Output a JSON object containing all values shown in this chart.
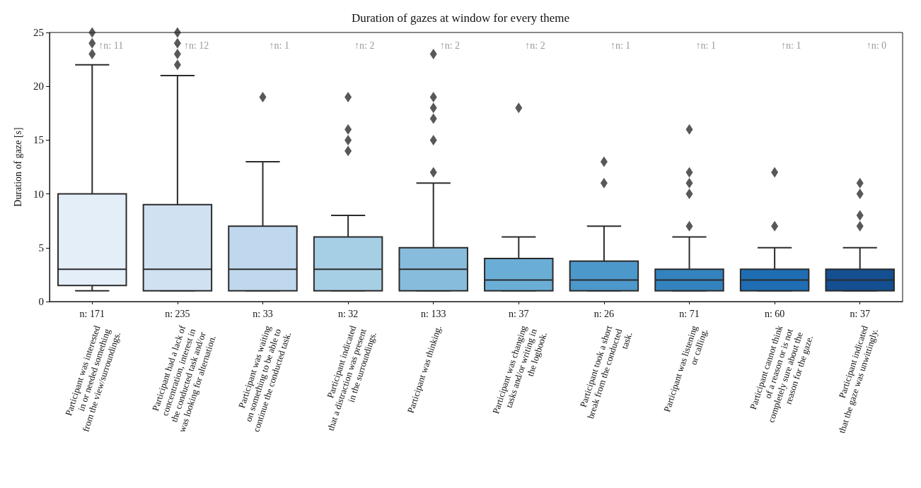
{
  "chart_data": {
    "type": "box",
    "title": "Duration of gazes at window for every theme",
    "ylabel": "Duration of gaze [s]",
    "categories": [
      "Participant was interested\nin or needed something\nfrom the view/surroundings.",
      "Participant had a lack of\nconcentration, interest in\nthe conducted task and/or\nwas looking for alternation.",
      "Participant was waiting\non something to be able to\ncontinue the conducted task.",
      "Participant indicated\nthat a distraction was present\nin the surroundings.",
      "Participant was thinking.",
      "Participant was changing\ntasks and/or writing in\nthe logbook.",
      "Participant took a short\nbreak from the conducted\ntask.",
      "Participant was listening\nor calling.",
      "Participant cannot think\nof a reason or is not\ncompletely sure about the\nreason for the gaze.",
      "Participant indicated\nthat the gaze was unwittingly."
    ],
    "boxes": [
      {
        "low": 1,
        "q1": 1.5,
        "median": 3,
        "q3": 10,
        "high": 22,
        "outliers": [
          23,
          24,
          25
        ]
      },
      {
        "low": 1,
        "q1": 1,
        "median": 3,
        "q3": 9,
        "high": 21,
        "outliers": [
          22,
          23,
          24,
          25
        ]
      },
      {
        "low": 1,
        "q1": 1,
        "median": 3,
        "q3": 7,
        "high": 13,
        "outliers": [
          19
        ]
      },
      {
        "low": 1,
        "q1": 1,
        "median": 3,
        "q3": 6,
        "high": 8,
        "outliers": [
          14,
          15,
          16,
          19
        ]
      },
      {
        "low": 1,
        "q1": 1,
        "median": 3,
        "q3": 5,
        "high": 11,
        "outliers": [
          12,
          15,
          17,
          18,
          19,
          23
        ]
      },
      {
        "low": 1,
        "q1": 1,
        "median": 2,
        "q3": 4,
        "high": 6,
        "outliers": [
          18
        ]
      },
      {
        "low": 1,
        "q1": 1,
        "median": 2,
        "q3": 3.75,
        "high": 7,
        "outliers": [
          11,
          13
        ]
      },
      {
        "low": 1,
        "q1": 1,
        "median": 2,
        "q3": 3,
        "high": 6,
        "outliers": [
          7,
          10,
          11,
          12,
          16
        ]
      },
      {
        "low": 1,
        "q1": 1,
        "median": 2,
        "q3": 3,
        "high": 5,
        "outliers": [
          7,
          12
        ]
      },
      {
        "low": 1,
        "q1": 1,
        "median": 2,
        "q3": 3,
        "high": 5,
        "outliers": [
          7,
          8,
          10,
          11
        ]
      }
    ],
    "colors": [
      "#e3eef9",
      "#d0e1f2",
      "#bfd8ed",
      "#a6cee4",
      "#87bcdc",
      "#6aaed6",
      "#4d98ca",
      "#3383be",
      "#1f6eb3",
      "#134f91"
    ],
    "ylim": [
      0,
      25
    ],
    "yticks": [
      0,
      5,
      10,
      15,
      20,
      25
    ],
    "grid": false,
    "marker": "diamond",
    "annotations": [
      "↑n: 11",
      "↑n: 12",
      "↑n: 1",
      "↑n: 2",
      "↑n: 2",
      "↑n: 2",
      "↑n: 1",
      "↑n: 1",
      "↑n: 1",
      "↑n: 0",
      "n: 171",
      "n: 235",
      "n: 33",
      "n: 32",
      "n: 133",
      "n: 37",
      "n: 26",
      "n: 71",
      "n: 60",
      "n: 37"
    ]
  }
}
